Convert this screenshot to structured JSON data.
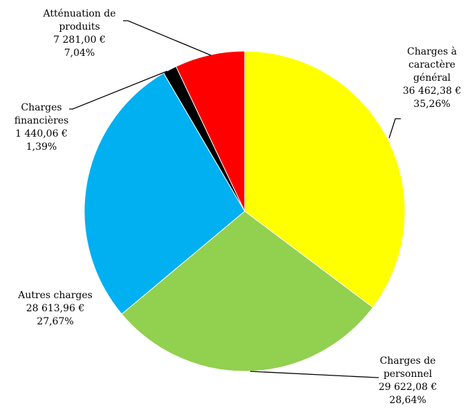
{
  "chart_data": {
    "type": "pie",
    "categories": [
      "Charges à caractère général",
      "Charges de personnel",
      "Autres charges",
      "Charges financières",
      "Atténuation de produits"
    ],
    "values": [
      36462.38,
      29622.08,
      28613.96,
      1440.06,
      7281.0
    ],
    "value_labels": [
      "36 462,38 €",
      "29 622,08 €",
      "28 613,96 €",
      "1 440,06 €",
      "7 281,00 €"
    ],
    "percentages": [
      35.26,
      28.64,
      27.67,
      1.39,
      7.04
    ],
    "percentage_labels": [
      "35,26%",
      "28,64%",
      "27,67%",
      "1,39%",
      "7,04%"
    ],
    "colors": [
      "#ffff00",
      "#92d050",
      "#00b0f0",
      "#000000",
      "#ff0000"
    ]
  }
}
